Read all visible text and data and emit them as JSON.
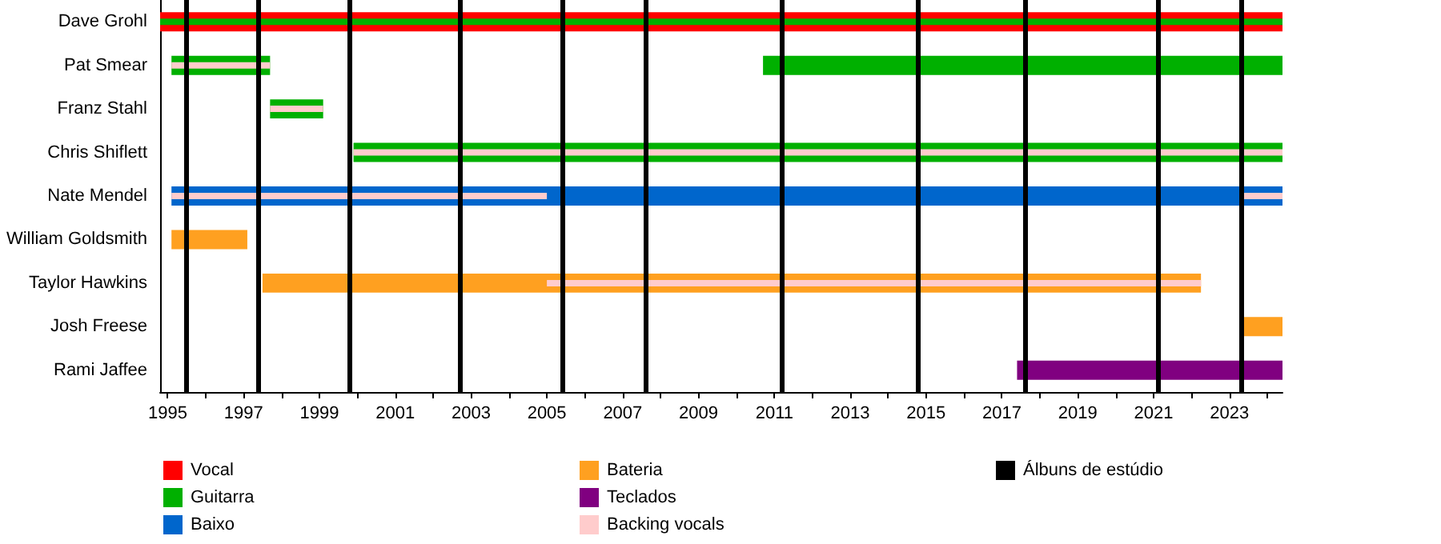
{
  "chart_data": {
    "type": "bar",
    "orientation": "horizontal",
    "legend": "bottom",
    "grid": false,
    "categories": [
      "Dave Grohl",
      "Pat Smear",
      "Franz Stahl",
      "Chris Shiflett",
      "Nate Mendel",
      "William Goldsmith",
      "Taylor Hawkins",
      "Josh Freese",
      "Rami Jaffee"
    ],
    "xlim": [
      1994.8,
      2024.4
    ],
    "xticks": [
      1995,
      {
        "value": 1996,
        "label": null
      },
      1997,
      {
        "value": 1998,
        "label": null
      },
      1999,
      {
        "value": 2000,
        "label": null
      },
      2001,
      {
        "value": 2002,
        "label": null
      },
      2003,
      {
        "value": 2004,
        "label": null
      },
      2005,
      {
        "value": 2006,
        "label": null
      },
      2007,
      {
        "value": 2008,
        "label": null
      },
      2009,
      {
        "value": 2010,
        "label": null
      },
      2011,
      {
        "value": 2012,
        "label": null
      },
      2013,
      {
        "value": 2014,
        "label": null
      },
      2015,
      {
        "value": 2016,
        "label": null
      },
      2017,
      {
        "value": 2018,
        "label": null
      },
      2019,
      {
        "value": 2020,
        "label": null
      },
      2021,
      {
        "value": 2022,
        "label": null
      },
      2023,
      {
        "value": 2024,
        "label": null
      }
    ],
    "series": [
      {
        "name": "Vocal",
        "color": "#ff0000",
        "base": [
          1994.8,
          null,
          null,
          null,
          null,
          null,
          null,
          null,
          null
        ],
        "values": [
          29.6,
          null,
          null,
          null,
          null,
          null,
          null,
          null,
          null
        ]
      },
      {
        "name": "Guitarra",
        "color": "#00b000",
        "base": [
          1994.8,
          1995.1,
          1997.7,
          1999.9,
          null,
          null,
          null,
          null,
          null
        ],
        "values": [
          29.6,
          2.6,
          1.4,
          24.5,
          null,
          null,
          null,
          null,
          null
        ]
      },
      {
        "color": "#00b000",
        "base": [
          null,
          2010.7,
          null,
          null,
          null,
          null,
          null,
          null,
          null
        ],
        "values": [
          null,
          13.7,
          null,
          null,
          null,
          null,
          null,
          null,
          null
        ]
      },
      {
        "name": "Baixo",
        "color": "#0066cc",
        "base": [
          null,
          null,
          null,
          null,
          1995.1,
          null,
          null,
          null,
          null
        ],
        "values": [
          null,
          null,
          null,
          null,
          29.3,
          null,
          null,
          null,
          null
        ]
      },
      {
        "name": "Bateria",
        "color": "#ffa020",
        "base": [
          null,
          null,
          null,
          null,
          null,
          1995.1,
          1997.5,
          2023.35,
          null
        ],
        "values": [
          null,
          null,
          null,
          null,
          null,
          2.0,
          24.75,
          1.05,
          null
        ]
      },
      {
        "name": "Teclados",
        "color": "#800080",
        "base": [
          null,
          null,
          null,
          null,
          null,
          null,
          null,
          null,
          2017.4
        ],
        "values": [
          null,
          null,
          null,
          null,
          null,
          null,
          null,
          null,
          7.0
        ]
      },
      {
        "name": "Backing vocals",
        "color": "#ffcccc",
        "base": [
          null,
          1995.1,
          1997.7,
          1999.9,
          1995.1,
          null,
          2005.0,
          null,
          null
        ],
        "values": [
          null,
          2.6,
          1.4,
          24.5,
          9.9,
          null,
          17.25,
          null,
          null
        ]
      },
      {
        "color": "#ffcccc",
        "base": [
          null,
          null,
          null,
          null,
          2023.3,
          null,
          null,
          null,
          null
        ],
        "values": [
          null,
          null,
          null,
          null,
          1.1,
          null,
          null,
          null,
          null
        ]
      }
    ],
    "ref_lines": [
      {
        "axis": "x",
        "value": 1995.5,
        "color": "#000000",
        "label": "Álbuns de estúdio"
      },
      {
        "axis": "x",
        "value": 1997.4,
        "color": "#000000"
      },
      {
        "axis": "x",
        "value": 1999.8,
        "color": "#000000"
      },
      {
        "axis": "x",
        "value": 2002.7,
        "color": "#000000"
      },
      {
        "axis": "x",
        "value": 2005.4,
        "color": "#000000"
      },
      {
        "axis": "x",
        "value": 2007.6,
        "color": "#000000"
      },
      {
        "axis": "x",
        "value": 2011.2,
        "color": "#000000"
      },
      {
        "axis": "x",
        "value": 2014.8,
        "color": "#000000"
      },
      {
        "axis": "x",
        "value": 2017.6,
        "color": "#000000"
      },
      {
        "axis": "x",
        "value": 2021.1,
        "color": "#000000"
      },
      {
        "axis": "x",
        "value": 2023.3,
        "color": "#000000"
      }
    ]
  }
}
